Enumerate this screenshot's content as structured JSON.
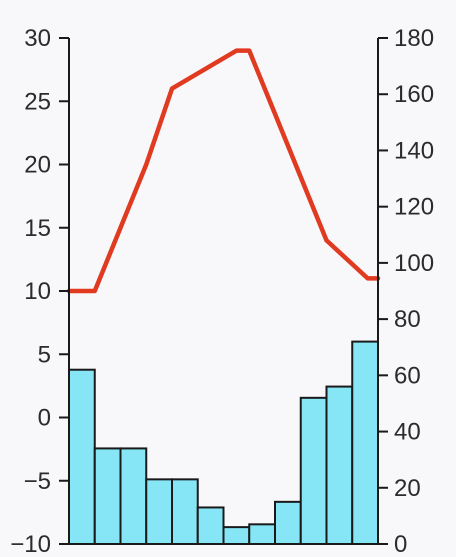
{
  "chart_data": {
    "type": "bar+line",
    "title": "",
    "xlabel": "",
    "left_axis": {
      "ylim": [
        -10,
        30
      ],
      "ticks": [
        30,
        25,
        20,
        15,
        10,
        5,
        0,
        -5,
        -10
      ],
      "tick_labels": [
        "30",
        "25",
        "20",
        "15",
        "10",
        "5",
        "0",
        "−5",
        "−10"
      ]
    },
    "right_axis": {
      "ylim": [
        0,
        180
      ],
      "ticks": [
        180,
        160,
        140,
        120,
        100,
        80,
        60,
        40,
        20,
        0
      ],
      "tick_labels": [
        "180",
        "160",
        "140",
        "120",
        "100",
        "80",
        "60",
        "40",
        "20",
        "0"
      ]
    },
    "months": 12,
    "series": [
      {
        "kind": "bar",
        "axis": "right",
        "color": "#86e6f5",
        "values": [
          62,
          34,
          34,
          23,
          23,
          13,
          6,
          7,
          15,
          52,
          56,
          72
        ]
      },
      {
        "kind": "line",
        "axis": "left",
        "color": "#e03a21",
        "values": [
          10,
          10,
          10,
          15,
          20,
          26,
          29,
          29,
          24,
          19,
          14,
          11,
          11
        ],
        "x": [
          0,
          0.5,
          1.0,
          2.0,
          3.0,
          4.0,
          6.5,
          7.0,
          8.0,
          9.0,
          10.0,
          11.6,
          12
        ]
      }
    ]
  }
}
